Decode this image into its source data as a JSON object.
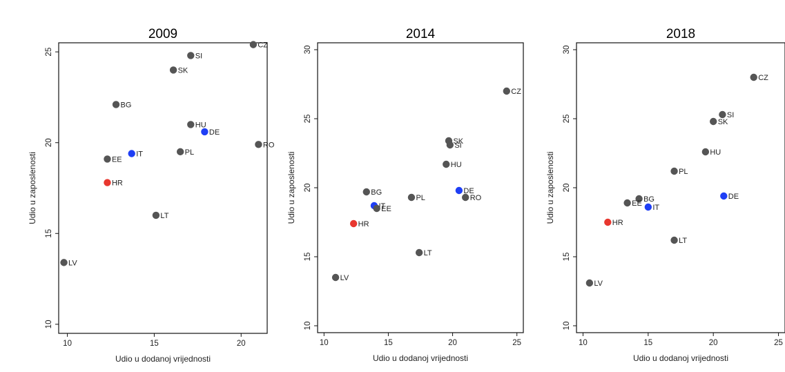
{
  "colors": {
    "default": "#555555",
    "highlight_blue": "#1f3ff5",
    "highlight_red": "#e8372f"
  },
  "chart_data": [
    {
      "type": "scatter",
      "title": "2009",
      "xlabel": "Udio u dodanoj vrijednosti",
      "ylabel": "Udio u zaposlenosti",
      "xlim": [
        9.5,
        21.5
      ],
      "ylim": [
        9.5,
        25.5
      ],
      "xticks": [
        10,
        15,
        20
      ],
      "yticks": [
        10,
        15,
        20,
        25
      ],
      "points": [
        {
          "label": "CZ",
          "x": 20.7,
          "y": 25.4,
          "color": "default"
        },
        {
          "label": "SI",
          "x": 17.1,
          "y": 24.8,
          "color": "default"
        },
        {
          "label": "SK",
          "x": 16.1,
          "y": 24.0,
          "color": "default"
        },
        {
          "label": "BG",
          "x": 12.8,
          "y": 22.1,
          "color": "default"
        },
        {
          "label": "HU",
          "x": 17.1,
          "y": 21.0,
          "color": "default"
        },
        {
          "label": "DE",
          "x": 17.9,
          "y": 20.6,
          "color": "highlight_blue"
        },
        {
          "label": "RO",
          "x": 21.0,
          "y": 19.9,
          "color": "default"
        },
        {
          "label": "IT",
          "x": 13.7,
          "y": 19.4,
          "color": "highlight_blue"
        },
        {
          "label": "PL",
          "x": 16.5,
          "y": 19.5,
          "color": "default"
        },
        {
          "label": "EE",
          "x": 12.3,
          "y": 19.1,
          "color": "default"
        },
        {
          "label": "HR",
          "x": 12.3,
          "y": 17.8,
          "color": "highlight_red"
        },
        {
          "label": "LT",
          "x": 15.1,
          "y": 16.0,
          "color": "default"
        },
        {
          "label": "LV",
          "x": 9.8,
          "y": 13.4,
          "color": "default"
        }
      ]
    },
    {
      "type": "scatter",
      "title": "2014",
      "xlabel": "Udio u dodanoj vrijednosti",
      "ylabel": "Udio u zaposlenosti",
      "xlim": [
        9.5,
        25.5
      ],
      "ylim": [
        9.5,
        30.5
      ],
      "xticks": [
        10,
        15,
        20,
        25
      ],
      "yticks": [
        10,
        15,
        20,
        25,
        30
      ],
      "points": [
        {
          "label": "CZ",
          "x": 24.2,
          "y": 27.0,
          "color": "default"
        },
        {
          "label": "SK",
          "x": 19.7,
          "y": 23.4,
          "color": "default"
        },
        {
          "label": "SI",
          "x": 19.8,
          "y": 23.1,
          "color": "default"
        },
        {
          "label": "HU",
          "x": 19.5,
          "y": 21.7,
          "color": "default"
        },
        {
          "label": "DE",
          "x": 20.5,
          "y": 19.8,
          "color": "highlight_blue"
        },
        {
          "label": "RO",
          "x": 21.0,
          "y": 19.3,
          "color": "default"
        },
        {
          "label": "BG",
          "x": 13.3,
          "y": 19.7,
          "color": "default"
        },
        {
          "label": "PL",
          "x": 16.8,
          "y": 19.3,
          "color": "default"
        },
        {
          "label": "IT",
          "x": 13.9,
          "y": 18.7,
          "color": "highlight_blue"
        },
        {
          "label": "EE",
          "x": 14.1,
          "y": 18.5,
          "color": "default"
        },
        {
          "label": "HR",
          "x": 12.3,
          "y": 17.4,
          "color": "highlight_red"
        },
        {
          "label": "LT",
          "x": 17.4,
          "y": 15.3,
          "color": "default"
        },
        {
          "label": "LV",
          "x": 10.9,
          "y": 13.5,
          "color": "default"
        }
      ]
    },
    {
      "type": "scatter",
      "title": "2018",
      "xlabel": "Udio u dodanoj vrijednosti",
      "ylabel": "Udio u zaposlenosti",
      "xlim": [
        9.5,
        25.5
      ],
      "ylim": [
        9.5,
        30.5
      ],
      "xticks": [
        10,
        15,
        20,
        25
      ],
      "yticks": [
        10,
        15,
        20,
        25,
        30
      ],
      "points": [
        {
          "label": "CZ",
          "x": 23.1,
          "y": 28.0,
          "color": "default"
        },
        {
          "label": "SI",
          "x": 20.7,
          "y": 25.3,
          "color": "default"
        },
        {
          "label": "SK",
          "x": 20.0,
          "y": 24.8,
          "color": "default"
        },
        {
          "label": "HU",
          "x": 19.4,
          "y": 22.6,
          "color": "default"
        },
        {
          "label": "PL",
          "x": 17.0,
          "y": 21.2,
          "color": "default"
        },
        {
          "label": "DE",
          "x": 20.8,
          "y": 19.4,
          "color": "highlight_blue"
        },
        {
          "label": "BG",
          "x": 14.3,
          "y": 19.2,
          "color": "default"
        },
        {
          "label": "EE",
          "x": 13.4,
          "y": 18.9,
          "color": "default"
        },
        {
          "label": "IT",
          "x": 15.0,
          "y": 18.6,
          "color": "highlight_blue"
        },
        {
          "label": "HR",
          "x": 11.9,
          "y": 17.5,
          "color": "highlight_red"
        },
        {
          "label": "LT",
          "x": 17.0,
          "y": 16.2,
          "color": "default"
        },
        {
          "label": "LV",
          "x": 10.5,
          "y": 13.1,
          "color": "default"
        }
      ]
    }
  ]
}
